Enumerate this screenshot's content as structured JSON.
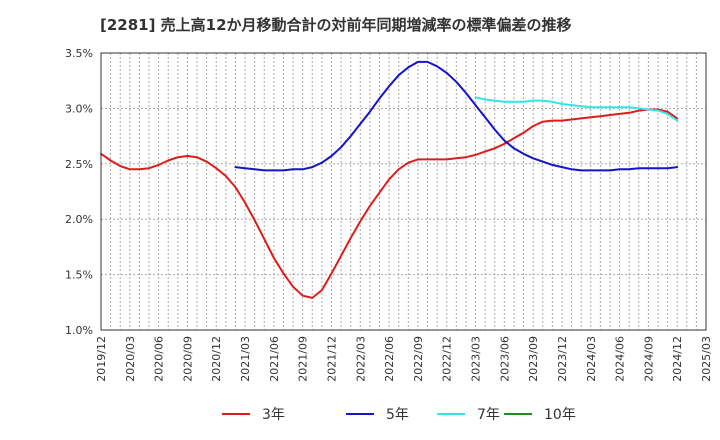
{
  "chart_data": {
    "type": "line",
    "title": "[2281]  売上高12か月移動合計の対前年同期増減率の標準偏差の推移",
    "xlabel": "",
    "ylabel": "",
    "ylim": [
      1.0,
      3.5
    ],
    "y_ticks": [
      "1.0%",
      "1.5%",
      "2.0%",
      "2.5%",
      "3.0%",
      "3.5%"
    ],
    "x_ticks": [
      "2019/12",
      "2020/03",
      "2020/06",
      "2020/09",
      "2020/12",
      "2021/03",
      "2021/06",
      "2021/09",
      "2021/12",
      "2022/03",
      "2022/06",
      "2022/09",
      "2022/12",
      "2023/03",
      "2023/06",
      "2023/09",
      "2023/12",
      "2024/03",
      "2024/06",
      "2024/09",
      "2024/12",
      "2025/03"
    ],
    "grid": true,
    "legend_position": "bottom",
    "series": [
      {
        "name": "3年",
        "color": "#dd1c1c",
        "points": [
          [
            "2019/12",
            2.59
          ],
          [
            "2020/01",
            2.53
          ],
          [
            "2020/02",
            2.48
          ],
          [
            "2020/03",
            2.45
          ],
          [
            "2020/04",
            2.45
          ],
          [
            "2020/05",
            2.46
          ],
          [
            "2020/06",
            2.49
          ],
          [
            "2020/07",
            2.53
          ],
          [
            "2020/08",
            2.56
          ],
          [
            "2020/09",
            2.57
          ],
          [
            "2020/10",
            2.56
          ],
          [
            "2020/11",
            2.52
          ],
          [
            "2020/12",
            2.46
          ],
          [
            "2021/01",
            2.39
          ],
          [
            "2021/02",
            2.29
          ],
          [
            "2021/03",
            2.15
          ],
          [
            "2021/04",
            1.99
          ],
          [
            "2021/05",
            1.82
          ],
          [
            "2021/06",
            1.65
          ],
          [
            "2021/07",
            1.51
          ],
          [
            "2021/08",
            1.39
          ],
          [
            "2021/09",
            1.31
          ],
          [
            "2021/10",
            1.29
          ],
          [
            "2021/11",
            1.36
          ],
          [
            "2021/12",
            1.51
          ],
          [
            "2022/01",
            1.67
          ],
          [
            "2022/02",
            1.83
          ],
          [
            "2022/03",
            1.98
          ],
          [
            "2022/04",
            2.12
          ],
          [
            "2022/05",
            2.24
          ],
          [
            "2022/06",
            2.36
          ],
          [
            "2022/07",
            2.45
          ],
          [
            "2022/08",
            2.51
          ],
          [
            "2022/09",
            2.54
          ],
          [
            "2022/10",
            2.54
          ],
          [
            "2022/11",
            2.54
          ],
          [
            "2022/12",
            2.54
          ],
          [
            "2023/01",
            2.55
          ],
          [
            "2023/02",
            2.56
          ],
          [
            "2023/03",
            2.58
          ],
          [
            "2023/04",
            2.61
          ],
          [
            "2023/05",
            2.64
          ],
          [
            "2023/06",
            2.68
          ],
          [
            "2023/07",
            2.73
          ],
          [
            "2023/08",
            2.78
          ],
          [
            "2023/09",
            2.84
          ],
          [
            "2023/10",
            2.88
          ],
          [
            "2023/11",
            2.89
          ],
          [
            "2023/12",
            2.89
          ],
          [
            "2024/01",
            2.9
          ],
          [
            "2024/02",
            2.91
          ],
          [
            "2024/03",
            2.92
          ],
          [
            "2024/04",
            2.93
          ],
          [
            "2024/05",
            2.94
          ],
          [
            "2024/06",
            2.95
          ],
          [
            "2024/07",
            2.96
          ],
          [
            "2024/08",
            2.98
          ],
          [
            "2024/09",
            2.99
          ],
          [
            "2024/10",
            2.99
          ],
          [
            "2024/11",
            2.97
          ],
          [
            "2024/12",
            2.91
          ]
        ]
      },
      {
        "name": "5年",
        "color": "#1414c8",
        "points": [
          [
            "2021/02",
            2.47
          ],
          [
            "2021/03",
            2.46
          ],
          [
            "2021/04",
            2.45
          ],
          [
            "2021/05",
            2.44
          ],
          [
            "2021/06",
            2.44
          ],
          [
            "2021/07",
            2.44
          ],
          [
            "2021/08",
            2.45
          ],
          [
            "2021/09",
            2.45
          ],
          [
            "2021/10",
            2.47
          ],
          [
            "2021/11",
            2.51
          ],
          [
            "2021/12",
            2.57
          ],
          [
            "2022/01",
            2.65
          ],
          [
            "2022/02",
            2.75
          ],
          [
            "2022/03",
            2.86
          ],
          [
            "2022/04",
            2.97
          ],
          [
            "2022/05",
            3.09
          ],
          [
            "2022/06",
            3.2
          ],
          [
            "2022/07",
            3.3
          ],
          [
            "2022/08",
            3.37
          ],
          [
            "2022/09",
            3.42
          ],
          [
            "2022/10",
            3.42
          ],
          [
            "2022/11",
            3.38
          ],
          [
            "2022/12",
            3.32
          ],
          [
            "2023/01",
            3.24
          ],
          [
            "2023/02",
            3.14
          ],
          [
            "2023/03",
            3.03
          ],
          [
            "2023/04",
            2.92
          ],
          [
            "2023/05",
            2.81
          ],
          [
            "2023/06",
            2.71
          ],
          [
            "2023/07",
            2.64
          ],
          [
            "2023/08",
            2.59
          ],
          [
            "2023/09",
            2.55
          ],
          [
            "2023/10",
            2.52
          ],
          [
            "2023/11",
            2.49
          ],
          [
            "2023/12",
            2.47
          ],
          [
            "2024/01",
            2.45
          ],
          [
            "2024/02",
            2.44
          ],
          [
            "2024/03",
            2.44
          ],
          [
            "2024/04",
            2.44
          ],
          [
            "2024/05",
            2.44
          ],
          [
            "2024/06",
            2.45
          ],
          [
            "2024/07",
            2.45
          ],
          [
            "2024/08",
            2.46
          ],
          [
            "2024/09",
            2.46
          ],
          [
            "2024/10",
            2.46
          ],
          [
            "2024/11",
            2.46
          ],
          [
            "2024/12",
            2.47
          ]
        ]
      },
      {
        "name": "7年",
        "color": "#33e5e5",
        "points": [
          [
            "2023/03",
            3.1
          ],
          [
            "2023/04",
            3.08
          ],
          [
            "2023/05",
            3.07
          ],
          [
            "2023/06",
            3.06
          ],
          [
            "2023/07",
            3.06
          ],
          [
            "2023/08",
            3.06
          ],
          [
            "2023/09",
            3.07
          ],
          [
            "2023/10",
            3.07
          ],
          [
            "2023/11",
            3.06
          ],
          [
            "2023/12",
            3.04
          ],
          [
            "2024/01",
            3.03
          ],
          [
            "2024/02",
            3.02
          ],
          [
            "2024/03",
            3.01
          ],
          [
            "2024/04",
            3.01
          ],
          [
            "2024/05",
            3.01
          ],
          [
            "2024/06",
            3.01
          ],
          [
            "2024/07",
            3.01
          ],
          [
            "2024/08",
            3.0
          ],
          [
            "2024/09",
            2.99
          ],
          [
            "2024/10",
            2.98
          ],
          [
            "2024/11",
            2.95
          ],
          [
            "2024/12",
            2.89
          ]
        ]
      },
      {
        "name": "10年",
        "color": "#1e8c1e",
        "points": []
      }
    ]
  }
}
